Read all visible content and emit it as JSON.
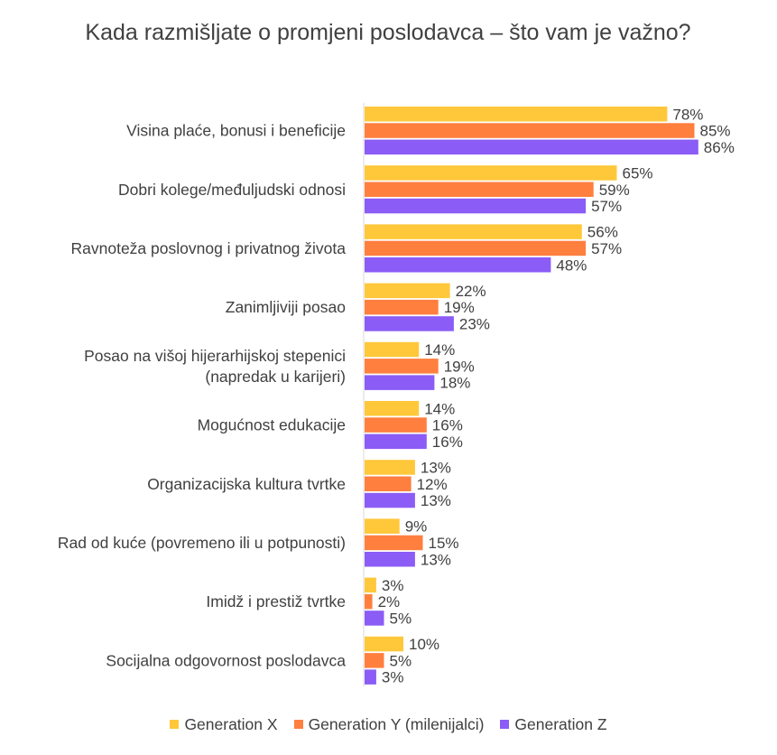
{
  "chart_data": {
    "type": "bar",
    "orientation": "horizontal",
    "title": "Kada razmišljate o promjeni poslodavca – što vam je važno?",
    "categories": [
      "Visina plaće, bonusi i beneficije",
      "Dobri kolege/međuljudski odnosi",
      "Ravnoteža poslovnog i privatnog života",
      "Zanimljiviji posao",
      "Posao na višoj hijerarhijskoj stepenici (napredak u karijeri)",
      "Mogućnost edukacije",
      "Organizacijska kultura tvrtke",
      "Rad od kuće (povremeno ili u potpunosti)",
      "Imidž i prestiž tvrtke",
      "Socijalna odgovornost poslodavca"
    ],
    "series": [
      {
        "name": "Generation X",
        "color": "#FFC83A",
        "values": [
          78,
          65,
          56,
          22,
          14,
          14,
          13,
          9,
          3,
          10
        ]
      },
      {
        "name": "Generation Y (milenijalci)",
        "color": "#FF7F3F",
        "values": [
          85,
          59,
          57,
          19,
          19,
          16,
          12,
          15,
          2,
          5
        ]
      },
      {
        "name": "Generation Z",
        "color": "#8B5CF6",
        "values": [
          86,
          57,
          48,
          23,
          18,
          16,
          13,
          13,
          5,
          3
        ]
      }
    ],
    "value_suffix": "%",
    "xlim": [
      0,
      100
    ],
    "grid": false,
    "legend_position": "bottom"
  }
}
